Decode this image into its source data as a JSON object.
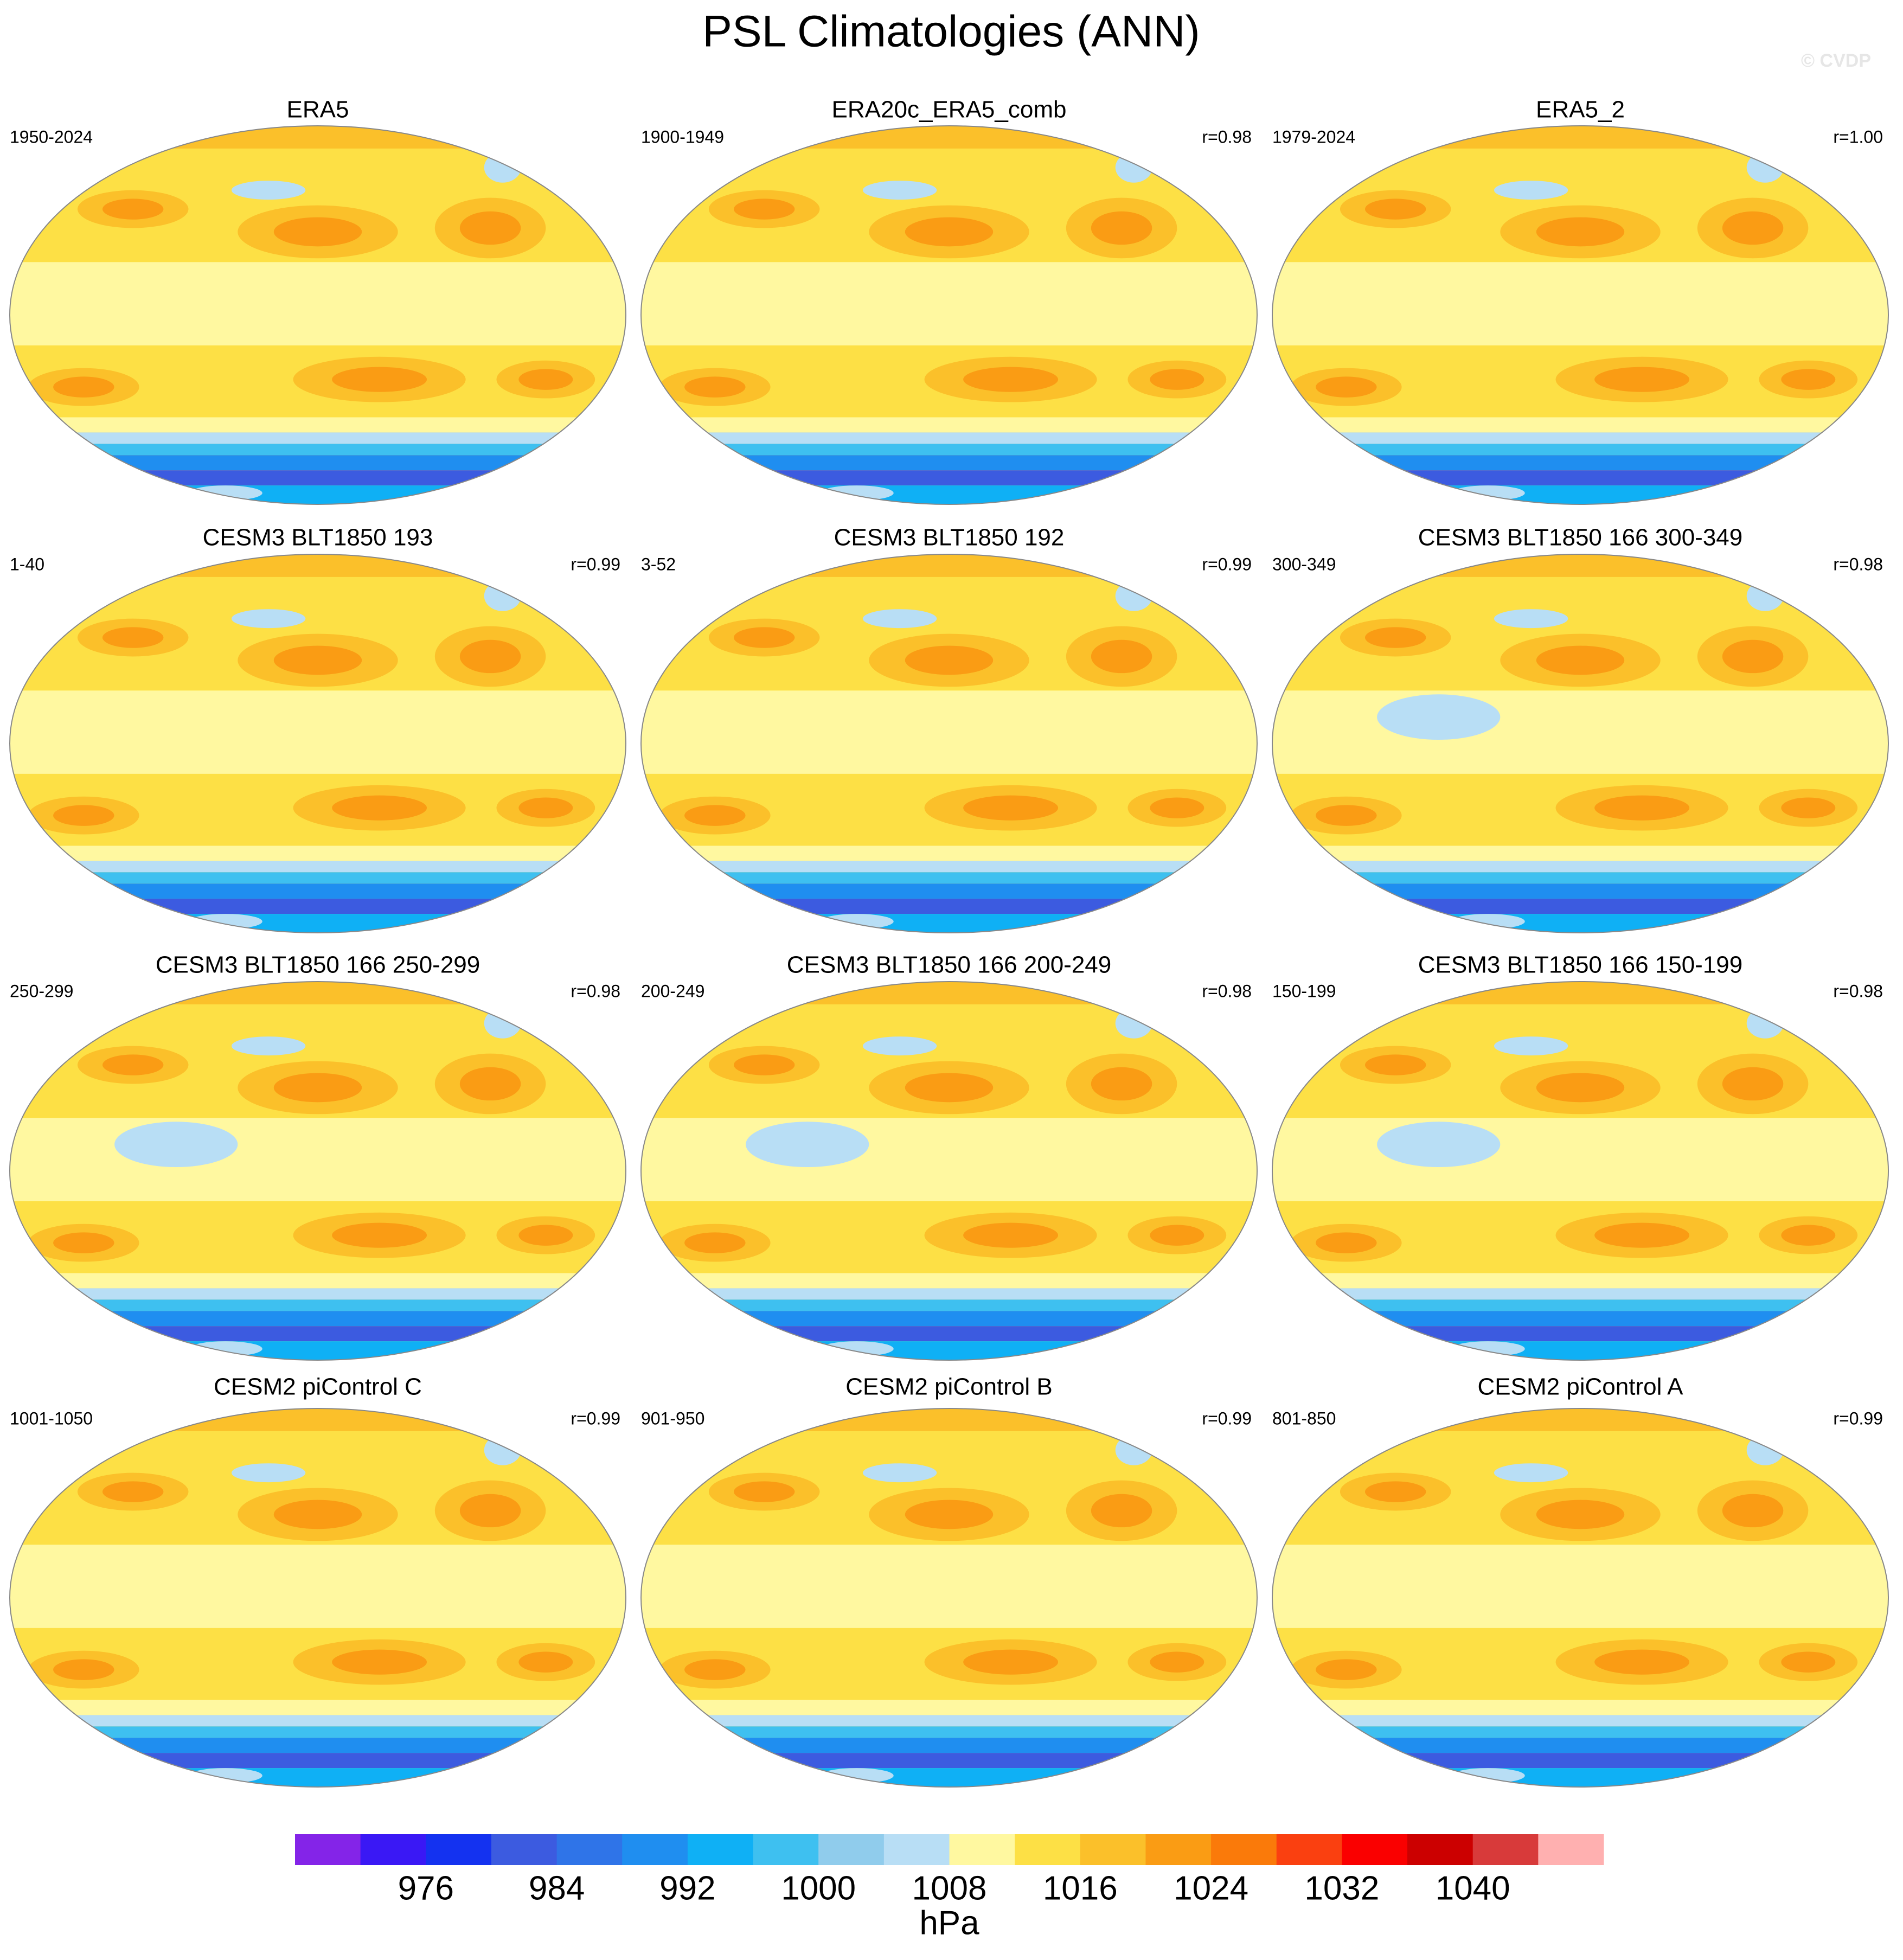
{
  "chart_data": {
    "type": "map-grid",
    "title": "PSL Climatologies (ANN)",
    "watermark": "© CVDP",
    "panels": [
      {
        "title": "ERA5",
        "period": "1950-2024"
      },
      {
        "title": "ERA20c_ERA5_comb",
        "period": "1900-1949",
        "corr": "r=0.98"
      },
      {
        "title": "ERA5_2",
        "period": "1979-2024",
        "corr": "r=1.00"
      },
      {
        "title": "CESM3 BLT1850 193",
        "period": "1-40",
        "corr": "r=0.99"
      },
      {
        "title": "CESM3 BLT1850 192",
        "period": "3-52",
        "corr": "r=0.99"
      },
      {
        "title": "CESM3 BLT1850 166 300-349",
        "period": "300-349",
        "corr": "r=0.98"
      },
      {
        "title": "CESM3 BLT1850 166 250-299",
        "period": "250-299",
        "corr": "r=0.98"
      },
      {
        "title": "CESM3 BLT1850 166 200-249",
        "period": "200-249",
        "corr": "r=0.98"
      },
      {
        "title": "CESM3 BLT1850 166 150-199",
        "period": "150-199",
        "corr": "r=0.98"
      },
      {
        "title": "CESM2 piControl C",
        "period": "1001-1050",
        "corr": "r=0.99"
      },
      {
        "title": "CESM2 piControl B",
        "period": "901-950",
        "corr": "r=0.99"
      },
      {
        "title": "CESM2 piControl A",
        "period": "801-850",
        "corr": "r=0.99"
      }
    ],
    "colorbar": {
      "type": "colorbar",
      "colors": [
        "#8424e8",
        "#3a18f5",
        "#1432f0",
        "#3c5be0",
        "#2f74e8",
        "#1f8ef0",
        "#0fb0f5",
        "#3ec0f0",
        "#90ccec",
        "#b8def5",
        "#fff8a0",
        "#fde045",
        "#fbc02a",
        "#fa9c14",
        "#fa7a0a",
        "#fa4010",
        "#fa0000",
        "#cc0000",
        "#d83a3a",
        "#ffb0b0"
      ],
      "xlim": [
        968,
        1048
      ],
      "xticks": [
        976,
        984,
        992,
        1000,
        1008,
        1016,
        1024,
        1032,
        1040
      ],
      "label": "hPa"
    }
  }
}
